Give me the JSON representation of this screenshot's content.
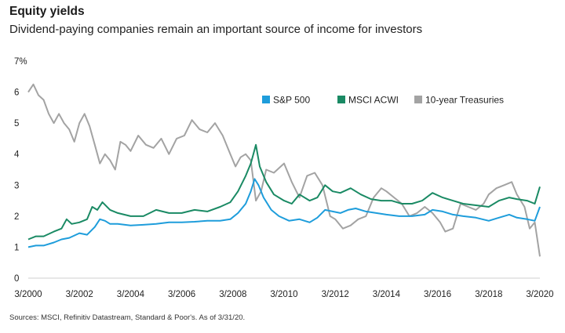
{
  "header": {
    "title": "Equity yields",
    "subtitle": "Dividend-paying companies remain an important source of income for investors"
  },
  "footer": {
    "source": "Sources: MSCI, Refinitiv Datastream, Standard & Poor's. As of 3/31/20."
  },
  "chart_data": {
    "type": "line",
    "xlim": [
      2000.0,
      2020.0
    ],
    "ylim": [
      0,
      7
    ],
    "x_ticks": [
      {
        "value": 2000,
        "label": "3/2000"
      },
      {
        "value": 2002,
        "label": "3/2002"
      },
      {
        "value": 2004,
        "label": "3/2004"
      },
      {
        "value": 2006,
        "label": "3/2006"
      },
      {
        "value": 2008,
        "label": "3/2008"
      },
      {
        "value": 2010,
        "label": "3/2010"
      },
      {
        "value": 2012,
        "label": "3/2012"
      },
      {
        "value": 2014,
        "label": "3/2014"
      },
      {
        "value": 2016,
        "label": "3/2016"
      },
      {
        "value": 2018,
        "label": "3/2018"
      },
      {
        "value": 2020,
        "label": "3/2020"
      }
    ],
    "y_ticks": [
      {
        "value": 0,
        "label": "0"
      },
      {
        "value": 1,
        "label": "1"
      },
      {
        "value": 2,
        "label": "2"
      },
      {
        "value": 3,
        "label": "3"
      },
      {
        "value": 4,
        "label": "4"
      },
      {
        "value": 5,
        "label": "5"
      },
      {
        "value": 6,
        "label": "6"
      },
      {
        "value": 7,
        "label": "7%"
      }
    ],
    "legend_position": "top-right",
    "series": [
      {
        "name": "S&P 500",
        "color": "#1e9ddb",
        "points": [
          [
            2000.0,
            1.0
          ],
          [
            2000.3,
            1.05
          ],
          [
            2000.6,
            1.05
          ],
          [
            2001.0,
            1.15
          ],
          [
            2001.3,
            1.25
          ],
          [
            2001.6,
            1.3
          ],
          [
            2002.0,
            1.45
          ],
          [
            2002.3,
            1.4
          ],
          [
            2002.6,
            1.65
          ],
          [
            2002.8,
            1.9
          ],
          [
            2003.0,
            1.85
          ],
          [
            2003.2,
            1.75
          ],
          [
            2003.5,
            1.75
          ],
          [
            2004.0,
            1.7
          ],
          [
            2004.5,
            1.72
          ],
          [
            2005.0,
            1.75
          ],
          [
            2005.5,
            1.8
          ],
          [
            2006.0,
            1.8
          ],
          [
            2006.5,
            1.82
          ],
          [
            2007.0,
            1.85
          ],
          [
            2007.5,
            1.85
          ],
          [
            2007.9,
            1.9
          ],
          [
            2008.2,
            2.1
          ],
          [
            2008.5,
            2.4
          ],
          [
            2008.7,
            2.8
          ],
          [
            2008.85,
            3.2
          ],
          [
            2009.0,
            3.0
          ],
          [
            2009.2,
            2.6
          ],
          [
            2009.5,
            2.2
          ],
          [
            2009.8,
            2.0
          ],
          [
            2010.2,
            1.85
          ],
          [
            2010.6,
            1.9
          ],
          [
            2011.0,
            1.8
          ],
          [
            2011.3,
            1.95
          ],
          [
            2011.6,
            2.2
          ],
          [
            2011.9,
            2.15
          ],
          [
            2012.2,
            2.1
          ],
          [
            2012.5,
            2.2
          ],
          [
            2012.8,
            2.25
          ],
          [
            2013.2,
            2.15
          ],
          [
            2013.6,
            2.1
          ],
          [
            2014.0,
            2.05
          ],
          [
            2014.5,
            2.0
          ],
          [
            2015.0,
            2.0
          ],
          [
            2015.5,
            2.05
          ],
          [
            2015.8,
            2.2
          ],
          [
            2016.2,
            2.15
          ],
          [
            2016.6,
            2.05
          ],
          [
            2017.0,
            2.0
          ],
          [
            2017.5,
            1.95
          ],
          [
            2018.0,
            1.85
          ],
          [
            2018.4,
            1.95
          ],
          [
            2018.8,
            2.05
          ],
          [
            2019.1,
            1.95
          ],
          [
            2019.5,
            1.9
          ],
          [
            2019.8,
            1.85
          ],
          [
            2020.0,
            2.3
          ]
        ]
      },
      {
        "name": "MSCI ACWI",
        "color": "#1a8a64",
        "points": [
          [
            2000.0,
            1.25
          ],
          [
            2000.3,
            1.35
          ],
          [
            2000.6,
            1.35
          ],
          [
            2001.0,
            1.5
          ],
          [
            2001.3,
            1.6
          ],
          [
            2001.5,
            1.9
          ],
          [
            2001.7,
            1.75
          ],
          [
            2002.0,
            1.8
          ],
          [
            2002.3,
            1.9
          ],
          [
            2002.5,
            2.3
          ],
          [
            2002.7,
            2.2
          ],
          [
            2002.9,
            2.45
          ],
          [
            2003.2,
            2.2
          ],
          [
            2003.5,
            2.1
          ],
          [
            2004.0,
            2.0
          ],
          [
            2004.5,
            2.0
          ],
          [
            2005.0,
            2.2
          ],
          [
            2005.5,
            2.1
          ],
          [
            2006.0,
            2.1
          ],
          [
            2006.5,
            2.2
          ],
          [
            2007.0,
            2.15
          ],
          [
            2007.5,
            2.3
          ],
          [
            2007.9,
            2.45
          ],
          [
            2008.2,
            2.8
          ],
          [
            2008.5,
            3.3
          ],
          [
            2008.7,
            3.7
          ],
          [
            2008.8,
            4.0
          ],
          [
            2008.9,
            4.3
          ],
          [
            2009.05,
            3.6
          ],
          [
            2009.3,
            3.1
          ],
          [
            2009.6,
            2.7
          ],
          [
            2010.0,
            2.5
          ],
          [
            2010.3,
            2.4
          ],
          [
            2010.6,
            2.7
          ],
          [
            2011.0,
            2.5
          ],
          [
            2011.3,
            2.6
          ],
          [
            2011.6,
            3.0
          ],
          [
            2011.9,
            2.8
          ],
          [
            2012.2,
            2.75
          ],
          [
            2012.6,
            2.9
          ],
          [
            2013.0,
            2.7
          ],
          [
            2013.4,
            2.55
          ],
          [
            2013.8,
            2.5
          ],
          [
            2014.2,
            2.5
          ],
          [
            2014.6,
            2.4
          ],
          [
            2015.0,
            2.4
          ],
          [
            2015.4,
            2.5
          ],
          [
            2015.8,
            2.75
          ],
          [
            2016.2,
            2.6
          ],
          [
            2016.6,
            2.5
          ],
          [
            2017.0,
            2.4
          ],
          [
            2017.5,
            2.35
          ],
          [
            2018.0,
            2.3
          ],
          [
            2018.4,
            2.5
          ],
          [
            2018.8,
            2.6
          ],
          [
            2019.1,
            2.55
          ],
          [
            2019.5,
            2.5
          ],
          [
            2019.8,
            2.4
          ],
          [
            2020.0,
            2.95
          ]
        ]
      },
      {
        "name": "10-year Treasuries",
        "color": "#a3a3a3",
        "points": [
          [
            2000.0,
            6.0
          ],
          [
            2000.2,
            6.25
          ],
          [
            2000.4,
            5.9
          ],
          [
            2000.6,
            5.75
          ],
          [
            2000.8,
            5.3
          ],
          [
            2001.0,
            5.0
          ],
          [
            2001.2,
            5.3
          ],
          [
            2001.4,
            5.0
          ],
          [
            2001.6,
            4.8
          ],
          [
            2001.8,
            4.4
          ],
          [
            2002.0,
            5.0
          ],
          [
            2002.2,
            5.3
          ],
          [
            2002.4,
            4.9
          ],
          [
            2002.6,
            4.3
          ],
          [
            2002.8,
            3.7
          ],
          [
            2003.0,
            4.0
          ],
          [
            2003.2,
            3.8
          ],
          [
            2003.4,
            3.5
          ],
          [
            2003.6,
            4.4
          ],
          [
            2003.8,
            4.3
          ],
          [
            2004.0,
            4.1
          ],
          [
            2004.3,
            4.6
          ],
          [
            2004.6,
            4.3
          ],
          [
            2004.9,
            4.2
          ],
          [
            2005.2,
            4.5
          ],
          [
            2005.5,
            4.0
          ],
          [
            2005.8,
            4.5
          ],
          [
            2006.1,
            4.6
          ],
          [
            2006.4,
            5.1
          ],
          [
            2006.7,
            4.8
          ],
          [
            2007.0,
            4.7
          ],
          [
            2007.3,
            5.0
          ],
          [
            2007.6,
            4.6
          ],
          [
            2007.9,
            4.0
          ],
          [
            2008.1,
            3.6
          ],
          [
            2008.3,
            3.9
          ],
          [
            2008.5,
            4.0
          ],
          [
            2008.7,
            3.8
          ],
          [
            2008.9,
            2.5
          ],
          [
            2009.1,
            2.8
          ],
          [
            2009.3,
            3.5
          ],
          [
            2009.6,
            3.4
          ],
          [
            2010.0,
            3.7
          ],
          [
            2010.3,
            3.1
          ],
          [
            2010.6,
            2.6
          ],
          [
            2010.9,
            3.3
          ],
          [
            2011.2,
            3.4
          ],
          [
            2011.5,
            3.0
          ],
          [
            2011.8,
            2.0
          ],
          [
            2012.0,
            1.9
          ],
          [
            2012.3,
            1.6
          ],
          [
            2012.6,
            1.7
          ],
          [
            2012.9,
            1.9
          ],
          [
            2013.2,
            2.0
          ],
          [
            2013.5,
            2.6
          ],
          [
            2013.8,
            2.9
          ],
          [
            2014.0,
            2.8
          ],
          [
            2014.3,
            2.6
          ],
          [
            2014.6,
            2.4
          ],
          [
            2014.9,
            2.0
          ],
          [
            2015.2,
            2.1
          ],
          [
            2015.5,
            2.3
          ],
          [
            2015.8,
            2.1
          ],
          [
            2016.1,
            1.8
          ],
          [
            2016.3,
            1.5
          ],
          [
            2016.6,
            1.6
          ],
          [
            2016.9,
            2.4
          ],
          [
            2017.2,
            2.3
          ],
          [
            2017.5,
            2.2
          ],
          [
            2017.8,
            2.4
          ],
          [
            2018.0,
            2.7
          ],
          [
            2018.3,
            2.9
          ],
          [
            2018.6,
            3.0
          ],
          [
            2018.9,
            3.1
          ],
          [
            2019.1,
            2.7
          ],
          [
            2019.4,
            2.3
          ],
          [
            2019.6,
            1.6
          ],
          [
            2019.8,
            1.8
          ],
          [
            2020.0,
            0.7
          ]
        ]
      }
    ]
  }
}
